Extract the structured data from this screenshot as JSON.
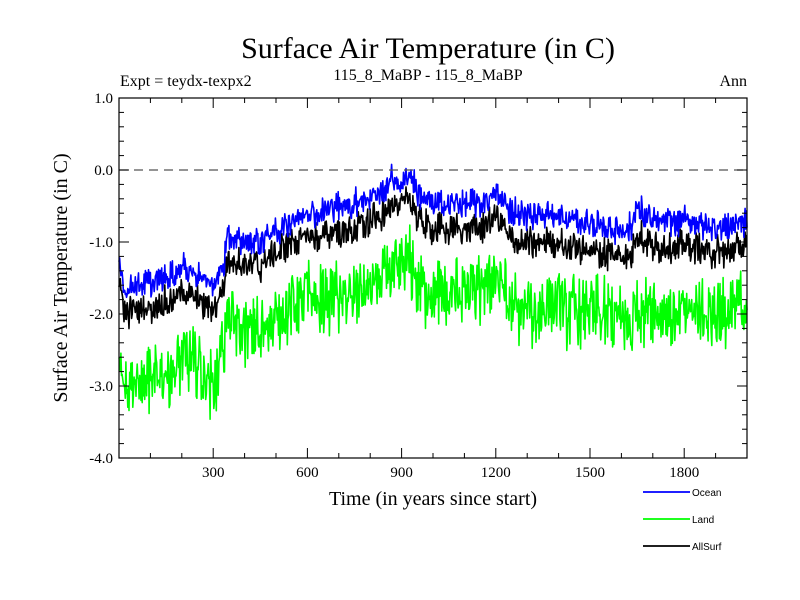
{
  "chart_data": {
    "type": "line",
    "title": "Surface Air Temperature (in C)",
    "subtitle_left": "Expt = teydx-texpx2",
    "subtitle_center": "115_8_MaBP - 115_8_MaBP",
    "subtitle_right": "Ann",
    "xlabel": "Time (in years since start)",
    "ylabel": "Surface Air Temperature (in C)",
    "xlim": [
      0,
      2000
    ],
    "ylim": [
      -4.0,
      1.0
    ],
    "xticks": [
      300,
      600,
      900,
      1200,
      1500,
      1800
    ],
    "yticks": [
      1.0,
      0.0,
      -1.0,
      -2.0,
      -3.0,
      -4.0
    ],
    "ytick_labels": [
      "1.0",
      "0.0",
      "-1.0",
      "-2.0",
      "-3.0",
      "-4.0"
    ],
    "reference_line": {
      "y": 0.0,
      "style": "dashed"
    },
    "series": [
      {
        "name": "Ocean",
        "color": "#0000ff",
        "x": [
          0,
          20,
          50,
          100,
          150,
          200,
          250,
          300,
          330,
          350,
          400,
          450,
          500,
          550,
          600,
          650,
          700,
          750,
          800,
          850,
          870,
          900,
          930,
          950,
          1000,
          1050,
          1100,
          1150,
          1200,
          1250,
          1300,
          1350,
          1400,
          1450,
          1500,
          1550,
          1600,
          1630,
          1650,
          1700,
          1750,
          1800,
          1850,
          1900,
          1950,
          2000
        ],
        "values": [
          -1.3,
          -1.7,
          -1.6,
          -1.55,
          -1.5,
          -1.35,
          -1.45,
          -1.6,
          -1.4,
          -0.9,
          -1.0,
          -1.0,
          -0.85,
          -0.7,
          -0.6,
          -0.6,
          -0.5,
          -0.45,
          -0.35,
          -0.3,
          -0.05,
          -0.25,
          -0.05,
          -0.3,
          -0.5,
          -0.45,
          -0.5,
          -0.45,
          -0.35,
          -0.55,
          -0.65,
          -0.6,
          -0.7,
          -0.7,
          -0.75,
          -0.8,
          -0.85,
          -0.8,
          -0.5,
          -0.75,
          -0.7,
          -0.7,
          -0.75,
          -0.8,
          -0.75,
          -0.7
        ]
      },
      {
        "name": "Land",
        "color": "#00ff00",
        "x": [
          0,
          20,
          50,
          100,
          150,
          200,
          250,
          300,
          330,
          350,
          400,
          450,
          500,
          550,
          600,
          650,
          700,
          750,
          800,
          850,
          870,
          900,
          930,
          950,
          1000,
          1050,
          1100,
          1150,
          1200,
          1250,
          1300,
          1350,
          1400,
          1450,
          1500,
          1550,
          1600,
          1630,
          1650,
          1700,
          1750,
          1800,
          1850,
          1900,
          1950,
          2000
        ],
        "values": [
          -2.5,
          -3.0,
          -3.0,
          -2.9,
          -2.8,
          -2.65,
          -2.7,
          -3.0,
          -2.5,
          -2.0,
          -2.2,
          -2.3,
          -2.05,
          -1.9,
          -1.8,
          -1.85,
          -1.75,
          -1.7,
          -1.6,
          -1.5,
          -1.3,
          -1.45,
          -1.3,
          -1.55,
          -1.75,
          -1.7,
          -1.75,
          -1.65,
          -1.5,
          -1.85,
          -2.0,
          -1.95,
          -1.9,
          -2.0,
          -1.95,
          -2.0,
          -2.1,
          -2.2,
          -1.85,
          -1.95,
          -2.0,
          -2.0,
          -1.95,
          -2.0,
          -1.95,
          -1.8
        ]
      },
      {
        "name": "AllSurf",
        "color": "#000000",
        "x": [
          0,
          20,
          50,
          100,
          150,
          200,
          250,
          300,
          330,
          350,
          400,
          450,
          500,
          550,
          600,
          650,
          700,
          750,
          800,
          850,
          870,
          900,
          930,
          950,
          1000,
          1050,
          1100,
          1150,
          1200,
          1250,
          1300,
          1350,
          1400,
          1450,
          1500,
          1550,
          1600,
          1630,
          1650,
          1700,
          1750,
          1800,
          1850,
          1900,
          1950,
          2000
        ],
        "values": [
          -1.6,
          -2.0,
          -1.95,
          -1.9,
          -1.85,
          -1.7,
          -1.8,
          -1.95,
          -1.7,
          -1.2,
          -1.3,
          -1.35,
          -1.15,
          -1.0,
          -0.95,
          -0.95,
          -0.85,
          -0.8,
          -0.7,
          -0.65,
          -0.35,
          -0.55,
          -0.4,
          -0.65,
          -0.85,
          -0.8,
          -0.85,
          -0.8,
          -0.65,
          -0.95,
          -1.05,
          -1.0,
          -1.05,
          -1.1,
          -1.1,
          -1.15,
          -1.2,
          -1.2,
          -0.85,
          -1.1,
          -1.05,
          -1.05,
          -1.1,
          -1.15,
          -1.1,
          -1.05
        ]
      }
    ],
    "noise_amplitude": [
      0.17,
      0.42,
      0.19
    ],
    "legend": [
      {
        "name": "Ocean",
        "color": "#0000ff"
      },
      {
        "name": "Land",
        "color": "#00ff00"
      },
      {
        "name": "AllSurf",
        "color": "#000000"
      }
    ],
    "legend_position": "bottom-right"
  }
}
